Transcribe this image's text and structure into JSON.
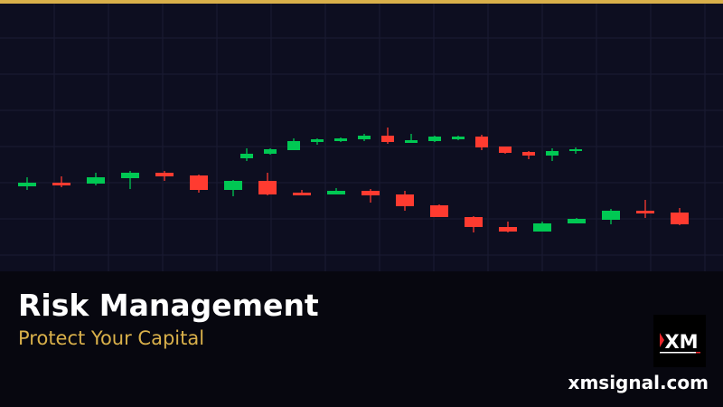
{
  "banner": {
    "title": "Risk Management",
    "subtitle": "Protect Your Capital",
    "website": "xmsignal.com",
    "logo_text": "XM"
  },
  "colors": {
    "accent": "#d9b04a",
    "bullish": "#00c853",
    "bearish": "#ff3b30",
    "background": "#0d0e20"
  }
}
